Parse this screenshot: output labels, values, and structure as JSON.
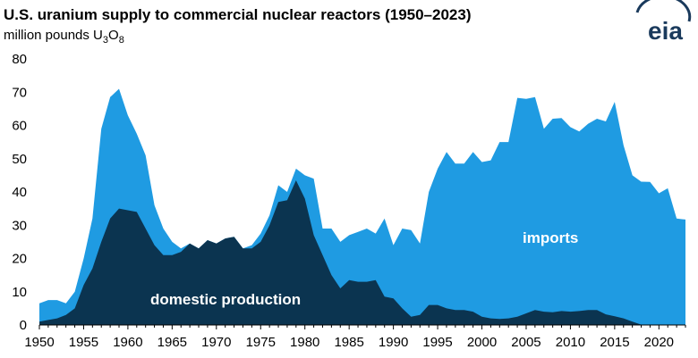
{
  "header": {
    "title": "U.S. uranium supply to commercial nuclear reactors (1950–2023)",
    "subtitle_prefix": "million pounds U",
    "subtitle_sub1": "3",
    "subtitle_mid": "O",
    "subtitle_sub2": "8"
  },
  "logo": {
    "text": "eia"
  },
  "colors": {
    "domestic": "#0b3450",
    "imports": "#1f9be2",
    "axis": "#000000",
    "logo": "#1a3a5c"
  },
  "chart_data": {
    "type": "area",
    "stacked": true,
    "x": [
      1950,
      1951,
      1952,
      1953,
      1954,
      1955,
      1956,
      1957,
      1958,
      1959,
      1960,
      1961,
      1962,
      1963,
      1964,
      1965,
      1966,
      1967,
      1968,
      1969,
      1970,
      1971,
      1972,
      1973,
      1974,
      1975,
      1976,
      1977,
      1978,
      1979,
      1980,
      1981,
      1982,
      1983,
      1984,
      1985,
      1986,
      1987,
      1988,
      1989,
      1990,
      1991,
      1992,
      1993,
      1994,
      1995,
      1996,
      1997,
      1998,
      1999,
      2000,
      2001,
      2002,
      2003,
      2004,
      2005,
      2006,
      2007,
      2008,
      2009,
      2010,
      2011,
      2012,
      2013,
      2014,
      2015,
      2016,
      2017,
      2018,
      2019,
      2020,
      2021,
      2022,
      2023
    ],
    "series": [
      {
        "name": "domestic production",
        "label": "domestic production",
        "values": [
          1,
          1.5,
          2,
          3,
          5,
          12,
          17,
          25,
          32,
          35,
          34.5,
          34,
          29,
          24,
          21,
          21,
          22,
          24.5,
          23,
          25.5,
          24.5,
          26,
          26.5,
          23,
          23,
          25,
          30,
          37,
          37.5,
          43.5,
          38,
          27,
          21,
          15,
          11,
          13.5,
          13,
          13,
          13.5,
          8.5,
          8,
          5,
          2.5,
          3,
          6,
          6,
          5,
          4.5,
          4.5,
          4,
          2.5,
          2,
          1.8,
          2,
          2.5,
          3.5,
          4.5,
          4,
          3.8,
          4.2,
          4,
          4.2,
          4.5,
          4.5,
          3.2,
          2.6,
          2,
          1,
          0.1,
          0.1,
          0.1,
          0.1,
          0.1,
          0.1
        ]
      },
      {
        "name": "imports",
        "label": "imports",
        "values": [
          5.5,
          6,
          5.5,
          3.5,
          5,
          8,
          15,
          34,
          36.5,
          36,
          28.5,
          23.5,
          22,
          12,
          8,
          4,
          1,
          0,
          0,
          0,
          0,
          0,
          0,
          0,
          1,
          2.5,
          3,
          5,
          2.5,
          3.5,
          7,
          17,
          8,
          14,
          14,
          13.5,
          15,
          16,
          14,
          23.5,
          16,
          24,
          26,
          21.5,
          34,
          41,
          47,
          44,
          44,
          48,
          46.5,
          47.5,
          53.2,
          53,
          65.8,
          64.5,
          64,
          55,
          58.2,
          58,
          55.5,
          54,
          56,
          57.5,
          58,
          64.5,
          52,
          44,
          43,
          42.9,
          39.5,
          41,
          31.9,
          31.6
        ]
      }
    ],
    "x_ticks": [
      1950,
      1955,
      1960,
      1965,
      1970,
      1975,
      1980,
      1985,
      1990,
      1995,
      2000,
      2005,
      2010,
      2015,
      2020
    ],
    "y_ticks": [
      0,
      10,
      20,
      30,
      40,
      50,
      60,
      70,
      80
    ],
    "xlim": [
      1950,
      2023
    ],
    "ylim": [
      0,
      80
    ],
    "grid": false,
    "legend": "inline labels"
  }
}
